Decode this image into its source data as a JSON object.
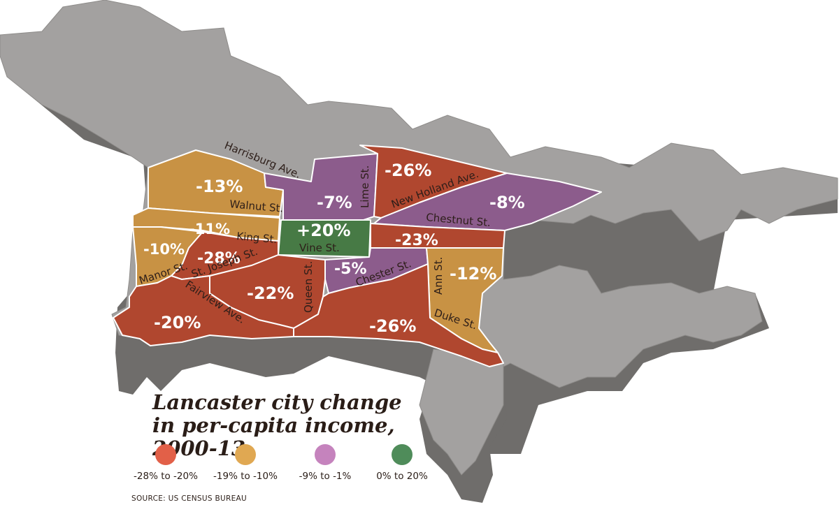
{
  "title": "Lancaster city change in per-capita income, 2000-13",
  "source": "SOURCE:  US CENSUS BUREAU",
  "legend": [
    {
      "label": "-28% to -20%",
      "color": "#e26048"
    },
    {
      "label": "-19% to -10%",
      "color": "#e0a852"
    },
    {
      "label": "-9% to -1%",
      "color": "#c583bd"
    },
    {
      "label": "0% to 20%",
      "color": "#4f8c5a"
    }
  ],
  "tracts": [
    {
      "id": "nw-walnut",
      "value": "-13%",
      "category": "-19% to -10%",
      "color": "#c89244"
    },
    {
      "id": "king",
      "value": "-11%",
      "category": "-19% to -10%",
      "color": "#c89244"
    },
    {
      "id": "manor",
      "value": "-10%",
      "category": "-19% to -10%",
      "color": "#c89244"
    },
    {
      "id": "st-joseph",
      "value": "-28%",
      "category": "-28% to -20%",
      "color": "#b0472f"
    },
    {
      "id": "harrisburg",
      "value": "-7%",
      "category": "-9% to -1%",
      "color": "#8c5c8c"
    },
    {
      "id": "vine",
      "value": "+20%",
      "category": "0% to 20%",
      "color": "#477a45"
    },
    {
      "id": "new-holland",
      "value": "-26%",
      "category": "-28% to -20%",
      "color": "#b0472f"
    },
    {
      "id": "chestnut",
      "value": "-8%",
      "category": "-9% to -1%",
      "color": "#8c5c8c"
    },
    {
      "id": "central-east",
      "value": "-23%",
      "category": "-28% to -20%",
      "color": "#b0472f"
    },
    {
      "id": "chester",
      "value": "-5%",
      "category": "-9% to -1%",
      "color": "#8c5c8c"
    },
    {
      "id": "ann",
      "value": "-12%",
      "category": "-19% to -10%",
      "color": "#c89244"
    },
    {
      "id": "queen-west",
      "value": "-22%",
      "category": "-28% to -20%",
      "color": "#b0472f"
    },
    {
      "id": "southwest",
      "value": "-20%",
      "category": "-28% to -20%",
      "color": "#b0472f"
    },
    {
      "id": "southeast",
      "value": "-26%",
      "category": "-28% to -20%",
      "color": "#b0472f"
    }
  ],
  "streets": {
    "harrisburg": "Harrisburg Ave.",
    "walnut": "Walnut St.",
    "king": "King St.",
    "manor": "Manor St.",
    "st_joseph": "St. Joseph St.",
    "fairview": "Fairview Ave.",
    "vine": "Vine St.",
    "lime": "Lime St.",
    "new_holland": "New Holland Ave.",
    "chestnut": "Chestnut St.",
    "chester": "Chester St.",
    "queen": "Queen St.",
    "ann": "Ann St.",
    "duke": "Duke St."
  }
}
